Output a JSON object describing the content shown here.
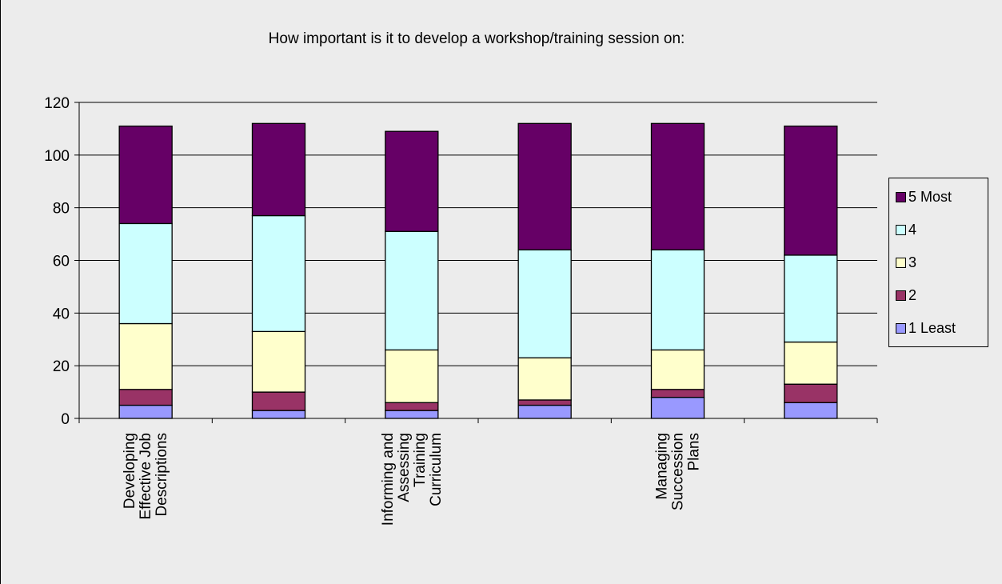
{
  "chart_data": {
    "type": "bar",
    "stacked": true,
    "title": "How important is it to develop a workshop/training session on:",
    "xlabel": "",
    "ylabel": "",
    "ylim": [
      0,
      120
    ],
    "yticks": [
      0,
      20,
      40,
      60,
      80,
      100,
      120
    ],
    "grid": true,
    "legend_position": "right",
    "categories": [
      "Developing Effective Job Descriptions",
      "",
      "Informing and Assessing Training Curriculum",
      "",
      "Managing Succession Plans",
      ""
    ],
    "series": [
      {
        "name": "1 Least",
        "color": "#9999ff",
        "values": [
          5,
          3,
          3,
          5,
          8,
          6
        ]
      },
      {
        "name": "2",
        "color": "#993366",
        "values": [
          6,
          7,
          3,
          2,
          3,
          7
        ]
      },
      {
        "name": "3",
        "color": "#ffffcc",
        "values": [
          25,
          23,
          20,
          16,
          15,
          16
        ]
      },
      {
        "name": "4",
        "color": "#ccffff",
        "values": [
          38,
          44,
          45,
          41,
          38,
          33
        ]
      },
      {
        "name": "5 Most",
        "color": "#660066",
        "values": [
          37,
          35,
          38,
          48,
          48,
          49
        ]
      }
    ],
    "legend_order": [
      "5 Most",
      "4",
      "3",
      "2",
      "1 Least"
    ]
  }
}
